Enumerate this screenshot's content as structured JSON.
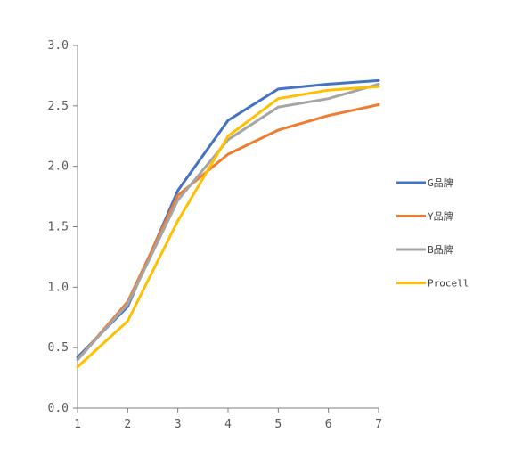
{
  "chart_data": {
    "type": "line",
    "title": "",
    "xlabel": "",
    "ylabel": "",
    "x": [
      1,
      2,
      3,
      4,
      5,
      6,
      7
    ],
    "xlim": [
      1,
      7
    ],
    "ylim": [
      0,
      3
    ],
    "y_ticks": [
      "0.0",
      "0.5",
      "1.0",
      "1.5",
      "2.0",
      "2.5",
      "3.0"
    ],
    "x_ticks": [
      "1",
      "2",
      "3",
      "4",
      "5",
      "6",
      "7"
    ],
    "grid": false,
    "legend_position": "right",
    "series": [
      {
        "name": "G品牌",
        "color": "#4472C4",
        "values": [
          0.42,
          0.84,
          1.8,
          2.38,
          2.64,
          2.68,
          2.71
        ]
      },
      {
        "name": "Y品牌",
        "color": "#ED7D31",
        "values": [
          0.4,
          0.88,
          1.76,
          2.1,
          2.3,
          2.42,
          2.51
        ]
      },
      {
        "name": "B品牌",
        "color": "#A5A5A5",
        "values": [
          0.4,
          0.86,
          1.72,
          2.22,
          2.49,
          2.56,
          2.68
        ]
      },
      {
        "name": "Procell",
        "color": "#FFC000",
        "values": [
          0.34,
          0.72,
          1.55,
          2.25,
          2.56,
          2.63,
          2.66
        ]
      }
    ]
  }
}
